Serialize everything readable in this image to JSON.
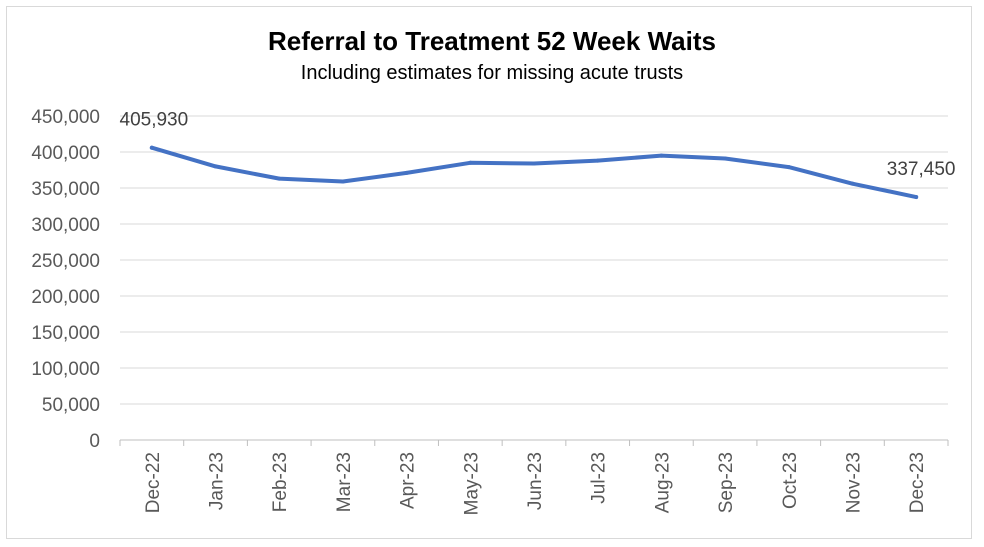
{
  "chart_data": {
    "type": "line",
    "title": "Referral to Treatment 52 Week Waits",
    "subtitle": "Including estimates for missing acute trusts",
    "xlabel": "",
    "ylabel": "",
    "categories": [
      "Dec-22",
      "Jan-23",
      "Feb-23",
      "Mar-23",
      "Apr-23",
      "May-23",
      "Jun-23",
      "Jul-23",
      "Aug-23",
      "Sep-23",
      "Oct-23",
      "Nov-23",
      "Dec-23"
    ],
    "series": [
      {
        "values": [
          405930,
          380000,
          363000,
          359000,
          371000,
          385000,
          384000,
          388000,
          395000,
          391000,
          379000,
          356000,
          337450
        ]
      }
    ],
    "ylim": [
      0,
      450000
    ],
    "yticks": [
      0,
      50000,
      100000,
      150000,
      200000,
      250000,
      300000,
      350000,
      400000,
      450000
    ],
    "ytick_labels": [
      "0",
      "50,000",
      "100,000",
      "150,000",
      "200,000",
      "250,000",
      "300,000",
      "350,000",
      "400,000",
      "450,000"
    ],
    "data_labels": [
      {
        "index": 0,
        "text": "405,930"
      },
      {
        "index": 12,
        "text": "337,450"
      }
    ],
    "grid": true,
    "legend": "none",
    "colors": {
      "line": "#4472c4",
      "grid": "#d9d9d9",
      "axis": "#bfbfbf",
      "tick_text": "#595959"
    }
  }
}
